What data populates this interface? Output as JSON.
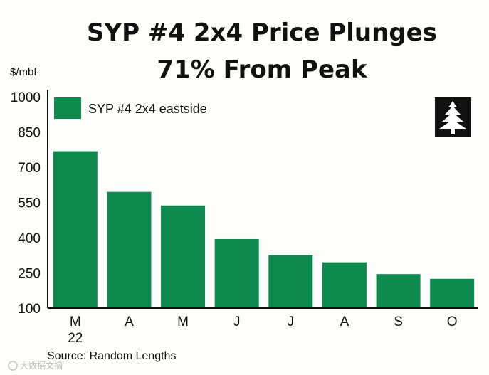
{
  "chart_data": {
    "type": "bar",
    "title": "SYP #4 2x4 Price Plunges",
    "subtitle": "71% From Peak",
    "ylabel": "$/mbf",
    "ylim": [
      100,
      1000
    ],
    "yticks": [
      1000,
      850,
      700,
      550,
      400,
      250,
      100
    ],
    "categories": [
      "M",
      "A",
      "M",
      "J",
      "J",
      "A",
      "S",
      "O"
    ],
    "category_sublabels": [
      "22",
      "",
      "",
      "",
      "",
      "",
      "",
      ""
    ],
    "series": [
      {
        "name": "SYP #4 2x4 eastside",
        "values": [
          768,
          595,
          537,
          394,
          325,
          295,
          245,
          225
        ],
        "color": "#0e8a4f"
      }
    ],
    "legend_position": "top-left",
    "grid": false,
    "source": "Source: Random Lengths"
  },
  "logo": {
    "name": "tree-logo"
  },
  "watermark": "大数据文摘"
}
